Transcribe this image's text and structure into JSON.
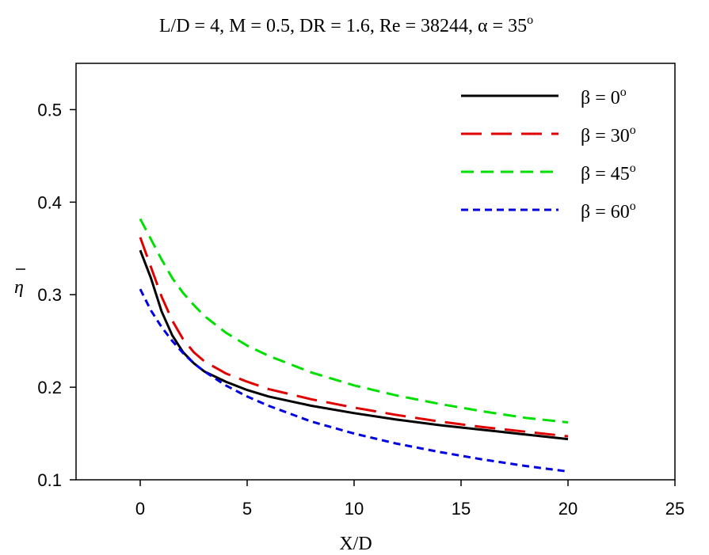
{
  "chart_data": {
    "type": "line",
    "title": "L/D = 4, M = 0.5, DR = 1.6, Re = 38244, α = 35",
    "title_sup": "o",
    "xlabel": "X/D",
    "ylabel": "η",
    "xlim": [
      -3,
      25
    ],
    "ylim": [
      0.1,
      0.55
    ],
    "x_ticks": [
      0,
      5,
      10,
      15,
      20,
      25
    ],
    "y_ticks": [
      0.1,
      0.2,
      0.3,
      0.4,
      0.5
    ],
    "legend_position": "top-right",
    "grid": false,
    "series": [
      {
        "name": "β = 0",
        "name_sup": "o",
        "color": "#000000",
        "style": "solid",
        "x": [
          0,
          0.5,
          1,
          1.5,
          2,
          2.5,
          3,
          4,
          5,
          6,
          8,
          10,
          12,
          14,
          16,
          18,
          20
        ],
        "y": [
          0.348,
          0.318,
          0.282,
          0.256,
          0.238,
          0.226,
          0.217,
          0.206,
          0.197,
          0.19,
          0.18,
          0.172,
          0.165,
          0.159,
          0.154,
          0.149,
          0.144
        ]
      },
      {
        "name": "β = 30",
        "name_sup": "o",
        "color": "#e00000",
        "style": "long-dash",
        "x": [
          0,
          0.5,
          1,
          1.5,
          2,
          2.5,
          3,
          4,
          5,
          6,
          8,
          10,
          12,
          14,
          16,
          18,
          20
        ],
        "y": [
          0.362,
          0.33,
          0.298,
          0.272,
          0.252,
          0.238,
          0.228,
          0.215,
          0.206,
          0.198,
          0.187,
          0.178,
          0.17,
          0.163,
          0.157,
          0.152,
          0.147
        ]
      },
      {
        "name": "β = 45",
        "name_sup": "o",
        "color": "#00e000",
        "style": "medium-dash",
        "x": [
          0,
          0.5,
          1,
          1.5,
          2,
          2.5,
          3,
          4,
          5,
          6,
          8,
          10,
          12,
          14,
          16,
          18,
          20
        ],
        "y": [
          0.382,
          0.36,
          0.338,
          0.318,
          0.302,
          0.289,
          0.277,
          0.259,
          0.245,
          0.234,
          0.216,
          0.202,
          0.191,
          0.182,
          0.174,
          0.167,
          0.162
        ]
      },
      {
        "name": "β = 60",
        "name_sup": "o",
        "color": "#0000e0",
        "style": "short-dash",
        "x": [
          0,
          0.5,
          1,
          1.5,
          2,
          2.5,
          3,
          4,
          5,
          6,
          8,
          10,
          12,
          14,
          16,
          18,
          20
        ],
        "y": [
          0.306,
          0.283,
          0.265,
          0.25,
          0.237,
          0.226,
          0.217,
          0.202,
          0.19,
          0.18,
          0.163,
          0.15,
          0.139,
          0.13,
          0.122,
          0.115,
          0.109
        ]
      }
    ]
  }
}
